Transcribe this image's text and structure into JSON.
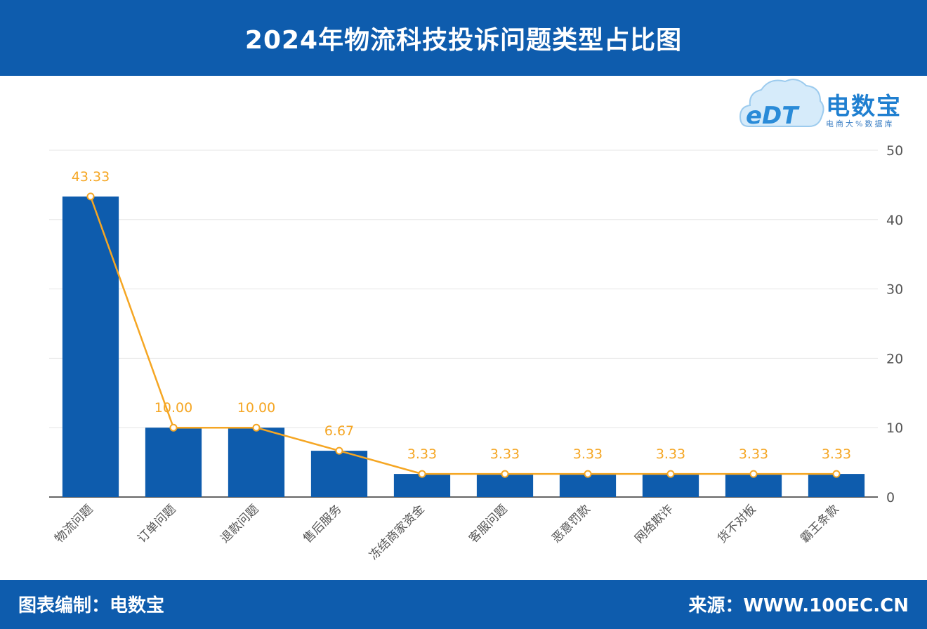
{
  "header": {
    "title": "2024年物流科技投诉问题类型占比图"
  },
  "logo": {
    "mark_text": "eDT",
    "name": "电数宝",
    "tagline": "电商大%数据库",
    "icon": "cloud-logo-icon"
  },
  "footer": {
    "left_text": "图表编制：电数宝",
    "right_text": "来源：WWW.100EC.CN"
  },
  "colors": {
    "brand": "#0e5cad",
    "bar": "#0e5cad",
    "line": "#f5a623",
    "label": "#f5a623",
    "axis_text": "#555555"
  },
  "chart_data": {
    "type": "bar",
    "categories": [
      "物流问题",
      "订单问题",
      "退款问题",
      "售后服务",
      "冻结商家资金",
      "客服问题",
      "恶意罚款",
      "网络欺诈",
      "货不对板",
      "霸王条款"
    ],
    "values": [
      43.33,
      10.0,
      10.0,
      6.67,
      3.33,
      3.33,
      3.33,
      3.33,
      3.33,
      3.33
    ],
    "value_labels": [
      "43.33",
      "10.00",
      "10.00",
      "6.67",
      "3.33",
      "3.33",
      "3.33",
      "3.33",
      "3.33",
      "3.33"
    ],
    "overlay_line": true,
    "y_ticks": [
      "0",
      "10",
      "20",
      "30",
      "40",
      "50"
    ],
    "ylim": [
      0,
      50
    ],
    "y_axis_side": "right",
    "grid": true,
    "title": "2024年物流科技投诉问题类型占比图",
    "xlabel": "",
    "ylabel": ""
  }
}
